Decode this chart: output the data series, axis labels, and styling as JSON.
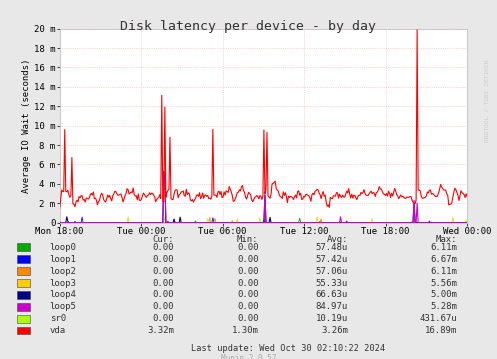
{
  "title": "Disk latency per device - by day",
  "ylabel": "Average IO Wait (seconds)",
  "bg_color": "#e8e8e8",
  "plot_bg": "#ffffff",
  "grid_color": "#ffaaaa",
  "x_labels": [
    "Mon 18:00",
    "Tue 00:00",
    "Tue 06:00",
    "Tue 12:00",
    "Tue 18:00",
    "Wed 00:00"
  ],
  "y_ticks": [
    0,
    2,
    4,
    6,
    8,
    10,
    12,
    14,
    16,
    18,
    20
  ],
  "y_tick_labels": [
    "0",
    "2 m",
    "4 m",
    "6 m",
    "8 m",
    "10 m",
    "12 m",
    "14 m",
    "16 m",
    "18 m",
    "20 m"
  ],
  "ylim": [
    0,
    20
  ],
  "legend_entries": [
    {
      "label": "loop0",
      "color": "#00aa00"
    },
    {
      "label": "loop1",
      "color": "#0000ff"
    },
    {
      "label": "loop2",
      "color": "#ff8800"
    },
    {
      "label": "loop3",
      "color": "#ffcc00"
    },
    {
      "label": "loop4",
      "color": "#000080"
    },
    {
      "label": "loop5",
      "color": "#cc00cc"
    },
    {
      "label": "sr0",
      "color": "#aaff00"
    },
    {
      "label": "vda",
      "color": "#ff0000"
    }
  ],
  "table_headers": [
    "Cur:",
    "Min:",
    "Avg:",
    "Max:"
  ],
  "table_data": [
    [
      "loop0",
      "0.00",
      "0.00",
      "57.48u",
      "6.11m"
    ],
    [
      "loop1",
      "0.00",
      "0.00",
      "57.42u",
      "6.67m"
    ],
    [
      "loop2",
      "0.00",
      "0.00",
      "57.06u",
      "6.11m"
    ],
    [
      "loop3",
      "0.00",
      "0.00",
      "55.33u",
      "5.56m"
    ],
    [
      "loop4",
      "0.00",
      "0.00",
      "66.63u",
      "5.00m"
    ],
    [
      "loop5",
      "0.00",
      "0.00",
      "84.97u",
      "5.28m"
    ],
    [
      "sr0",
      "0.00",
      "0.00",
      "10.19u",
      "431.67u"
    ],
    [
      "vda",
      "3.32m",
      "1.30m",
      "3.26m",
      "16.89m"
    ]
  ],
  "footer": "Last update: Wed Oct 30 02:10:22 2024",
  "munin_version": "Munin 2.0.57",
  "watermark": "RRDTOOL / TOBI OETIKER"
}
